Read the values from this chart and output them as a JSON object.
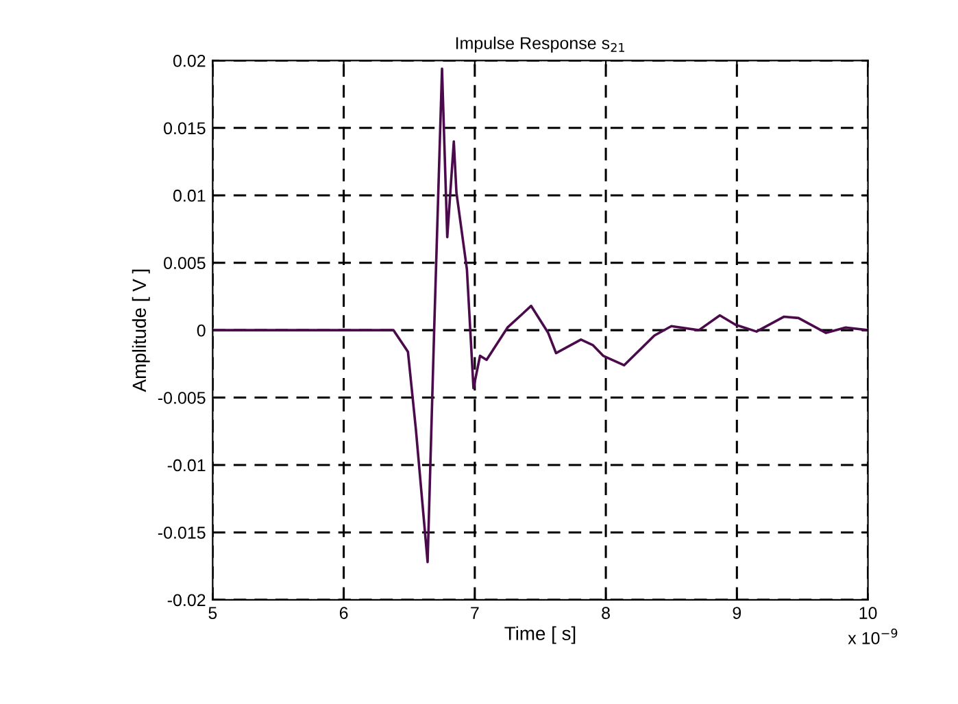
{
  "chart_data": {
    "type": "line",
    "title": "Impulse Response s$_{21}$",
    "xlabel": "Time [ s]",
    "ylabel": "Amplitude [ V ]",
    "annotations": [
      "x 10$^{−9}$"
    ],
    "series": [
      {
        "color": "#4b0a4b",
        "x": [
          5.0,
          5.5,
          6.0,
          6.2,
          6.38,
          6.49,
          6.55,
          6.64,
          6.69,
          6.75,
          6.79,
          6.84,
          6.86,
          6.94,
          6.99,
          7.04,
          7.09,
          7.25,
          7.43,
          7.56,
          7.62,
          7.81,
          7.9,
          7.98,
          8.14,
          8.37,
          8.5,
          8.71,
          8.87,
          8.99,
          9.15,
          9.36,
          9.47,
          9.68,
          9.83,
          10.0
        ],
        "values": [
          0,
          0,
          0,
          0,
          0,
          -0.0016,
          -0.0073,
          -0.0172,
          0,
          0.0194,
          0.0069,
          0.014,
          0.0102,
          0.0045,
          -0.0043,
          -0.0019,
          -0.0022,
          0.0002,
          0.0018,
          -0.0002,
          -0.0017,
          -0.0007,
          -0.0011,
          -0.0019,
          -0.0026,
          -0.0004,
          0.0003,
          0,
          0.0011,
          0.0004,
          -0.0001,
          0.001,
          0.0009,
          -0.0002,
          0.0002,
          0
        ]
      }
    ],
    "xlim": [
      5,
      10
    ],
    "xticks": [
      5,
      6,
      7,
      8,
      9,
      10
    ],
    "ylim": [
      -0.02,
      0.02
    ],
    "yticks": [
      -0.02,
      -0.015,
      -0.01,
      -0.005,
      0,
      0.005,
      0.01,
      0.015,
      0.02
    ],
    "grid": true,
    "line_style": "solid",
    "marker": "none"
  }
}
